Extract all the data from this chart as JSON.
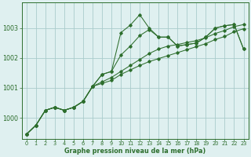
{
  "bg_color": "#dff0f0",
  "grid_color": "#aacccc",
  "line_color": "#2d6e2d",
  "title": "Graphe pression niveau de la mer (hPa)",
  "xlim": [
    -0.5,
    23.5
  ],
  "ylim": [
    999.3,
    1003.85
  ],
  "yticks": [
    1000,
    1001,
    1002,
    1003
  ],
  "xticks": [
    0,
    1,
    2,
    3,
    4,
    5,
    6,
    7,
    8,
    9,
    10,
    11,
    12,
    13,
    14,
    15,
    16,
    17,
    18,
    19,
    20,
    21,
    22,
    23
  ],
  "series": [
    [
      999.45,
      999.75,
      1000.25,
      1000.35,
      1000.25,
      1000.35,
      1000.55,
      1001.05,
      1001.45,
      1001.55,
      1002.85,
      1003.1,
      1003.45,
      1003.0,
      1002.7,
      1002.7,
      1002.4,
      1002.45,
      1002.5,
      1002.7,
      1003.0,
      1003.08,
      1003.12,
      1002.3
    ],
    [
      999.45,
      999.75,
      1000.25,
      1000.35,
      1000.25,
      1000.35,
      1000.55,
      1001.05,
      1001.45,
      1001.55,
      1002.1,
      1002.4,
      1002.75,
      1002.95,
      1002.7,
      1002.7,
      1002.4,
      1002.45,
      1002.5,
      1002.7,
      1003.0,
      1003.08,
      1003.12,
      1002.3
    ],
    [
      999.45,
      999.75,
      1000.25,
      1000.35,
      1000.25,
      1000.35,
      1000.55,
      1001.05,
      1001.2,
      1001.35,
      1001.55,
      1001.75,
      1001.95,
      1002.15,
      1002.3,
      1002.4,
      1002.45,
      1002.52,
      1002.58,
      1002.68,
      1002.82,
      1002.92,
      1003.05,
      1003.12
    ],
    [
      999.45,
      999.75,
      1000.25,
      1000.35,
      1000.25,
      1000.35,
      1000.55,
      1001.05,
      1001.15,
      1001.25,
      1001.45,
      1001.6,
      1001.75,
      1001.88,
      1001.98,
      1002.08,
      1002.18,
      1002.28,
      1002.38,
      1002.48,
      1002.62,
      1002.72,
      1002.88,
      1002.98
    ]
  ]
}
